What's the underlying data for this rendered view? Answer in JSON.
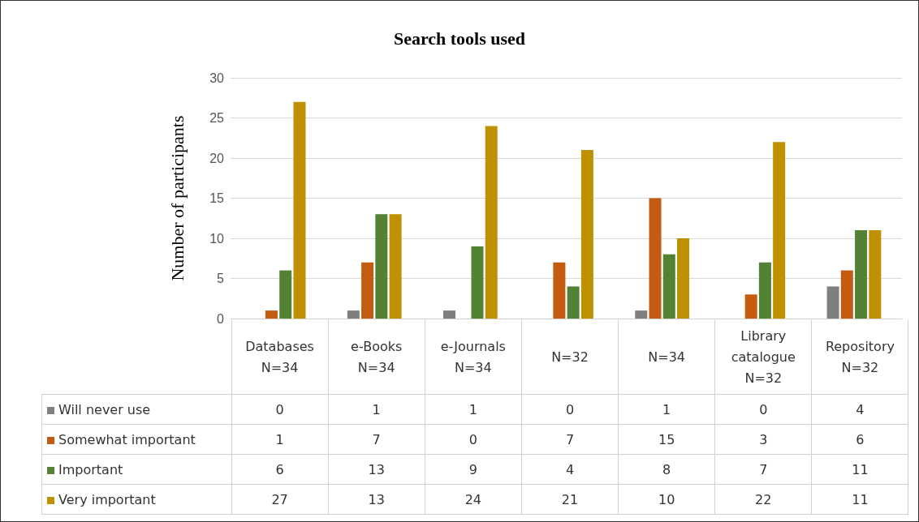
{
  "chart_data": {
    "type": "bar",
    "title": "Search tools used",
    "ylabel": "Number of participants",
    "categories": [
      "Databases\nN=34",
      "e-Books\nN=34",
      "e-Journals\nN=34",
      "N=32",
      "N=34",
      "Library\ncatalogue\nN=32",
      "Repository\nN=32"
    ],
    "series": [
      {
        "name": "Will never use",
        "color": "#7f7f7f",
        "values": [
          0,
          1,
          1,
          0,
          1,
          0,
          4
        ]
      },
      {
        "name": "Somewhat important",
        "color": "#c55a11",
        "values": [
          1,
          7,
          0,
          7,
          15,
          3,
          6
        ]
      },
      {
        "name": "Important",
        "color": "#548235",
        "values": [
          6,
          13,
          9,
          4,
          8,
          7,
          11
        ]
      },
      {
        "name": "Very important",
        "color": "#bf9000",
        "values": [
          27,
          13,
          24,
          21,
          10,
          22,
          11
        ]
      }
    ],
    "ylim": [
      0,
      30
    ],
    "yticks": [
      0,
      5,
      10,
      15,
      20,
      25,
      30
    ],
    "grid": "y",
    "legend": "bottom left",
    "data_labels": true
  }
}
